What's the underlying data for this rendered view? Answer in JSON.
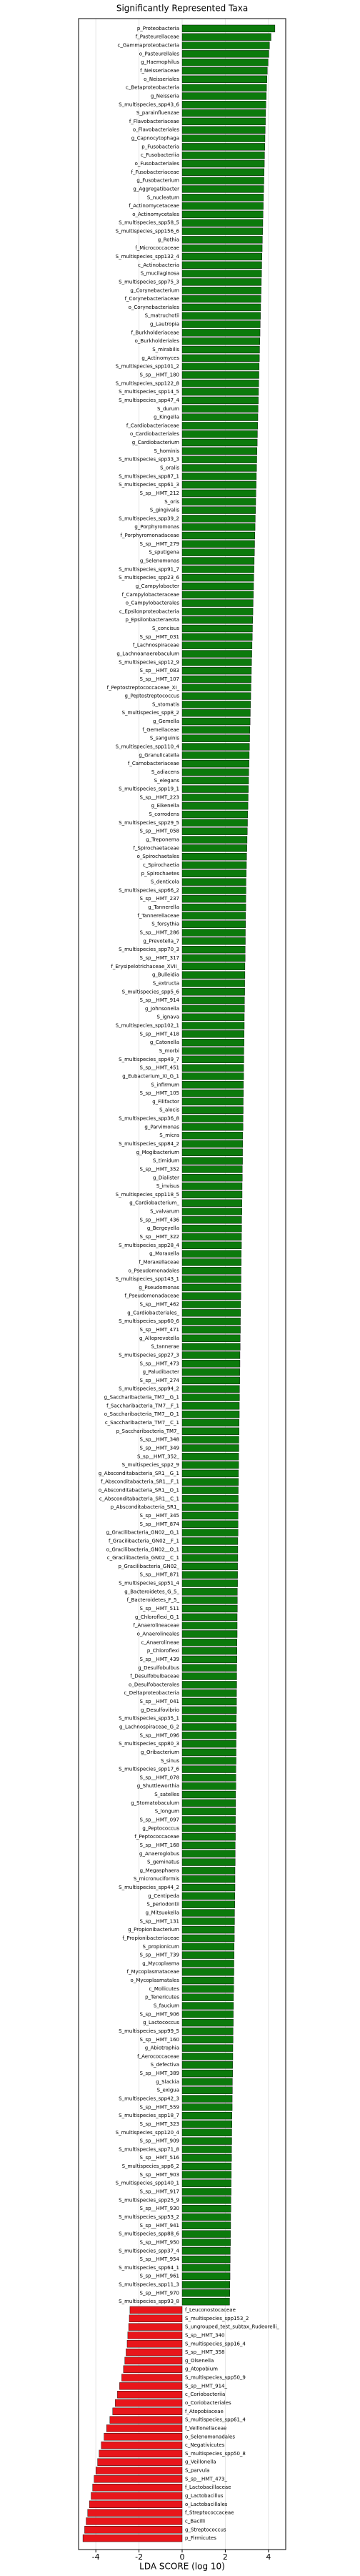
{
  "chart_data": {
    "type": "diverging_bar",
    "title": "Significantly Represented Taxa",
    "x_label": "LDA SCORE (log 10)",
    "categories": [
      "p_Proteobacteria",
      "f_Pasteurellaceae",
      "c_Gammaproteobacteria",
      "o_Pasteurellales",
      "g_Haemophilus",
      "f_Neisseriaceae",
      "o_Neisseriales",
      "c_Betaproteobacteria",
      "g_Neisseria",
      "S_multispecies_spp43_6",
      "S_parainfluenzae",
      "f_Flavobacteriaceae",
      "o_Flavobacteriales",
      "g_Capnocytophaga",
      "p_Fusobacteria",
      "c_Fusobacteriia",
      "o_Fusobacteriales",
      "f_Fusobacteriaceae",
      "g_Fusobacterium",
      "g_Aggregatibacter",
      "S_nucleatum",
      "f_Actinomycetaceae",
      "o_Actinomycetales",
      "S_multispecies_spp58_5",
      "S_multispecies_spp156_6",
      "g_Rothia",
      "f_Micrococcaceae",
      "S_multispecies_spp132_4",
      "c_Actinobacteria",
      "S_mucilaginosa",
      "S_multispecies_spp75_3",
      "g_Corynebacterium",
      "f_Corynebacteriaceae",
      "o_Corynebacteriales",
      "S_matruchotii",
      "g_Lautropia",
      "f_Burkholderiaceae",
      "o_Burkholderiales",
      "S_mirabilis",
      "g_Actinomyces",
      "S_multispecies_spp101_2",
      "S_sp__HMT_180",
      "S_multispecies_spp122_8",
      "S_multispecies_spp14_5",
      "S_multispecies_spp47_4",
      "S_durum",
      "g_Kingella",
      "f_Cardiobacteriaceae",
      "o_Cardiobacteriales",
      "g_Cardiobacterium",
      "S_hominis",
      "S_multispecies_spp33_3",
      "S_oralis",
      "S_multispecies_spp87_1",
      "S_multispecies_spp61_3",
      "S_sp__HMT_212",
      "S_oris",
      "S_gingivalis",
      "S_multispecies_spp39_2",
      "g_Porphyromonas",
      "f_Porphyromonadaceae",
      "S_sp__HMT_279",
      "S_sputigena",
      "g_Selenomonas",
      "S_multispecies_spp91_7",
      "S_multispecies_spp23_6",
      "g_Campylobacter",
      "f_Campylobacteraceae",
      "o_Campylobacterales",
      "c_Epsilonproteobacteria",
      "p_Epsilonbacteraeota",
      "S_concisus",
      "S_sp__HMT_031",
      "f_Lachnospiraceae",
      "g_Lachnoanaerobaculum",
      "S_multispecies_spp12_9",
      "S_sp__HMT_083",
      "S_sp__HMT_107",
      "f_Peptostreptococcaceae_XI_",
      "g_Peptostreptococcus",
      "S_stomatis",
      "S_multispecies_spp8_2",
      "g_Gemella",
      "f_Gemellaceae",
      "S_sanguinis",
      "S_multispecies_spp110_4",
      "g_Granulicatella",
      "f_Carnobacteriaceae",
      "S_adiacens",
      "S_elegans",
      "S_multispecies_spp19_1",
      "S_sp__HMT_223",
      "g_Eikenella",
      "S_corrodens",
      "S_multispecies_spp29_5",
      "S_sp__HMT_058",
      "g_Treponema",
      "f_Spirochaetaceae",
      "o_Spirochaetales",
      "c_Spirochaetia",
      "p_Spirochaetes",
      "S_denticola",
      "S_multispecies_spp66_2",
      "S_sp__HMT_237",
      "g_Tannerella",
      "f_Tannerellaceae",
      "S_forsythia",
      "S_sp__HMT_286",
      "g_Prevotella_7",
      "S_multispecies_spp70_3",
      "S_sp__HMT_317",
      "f_Erysipelotrichaceae_XVII_",
      "g_Bulleidia",
      "S_extructa",
      "S_multispecies_spp5_6",
      "S_sp__HMT_914",
      "g_Johnsonella",
      "S_ignava",
      "S_multispecies_spp102_1",
      "S_sp__HMT_418",
      "g_Catonella",
      "S_morbi",
      "S_multispecies_spp49_7",
      "S_sp__HMT_451",
      "g_Eubacterium_XI_G_1",
      "S_infirmum",
      "S_sp__HMT_105",
      "g_Filifactor",
      "S_alocis",
      "S_multispecies_spp36_8",
      "g_Parvimonas",
      "S_micra",
      "S_multispecies_spp84_2",
      "g_Mogibacterium",
      "S_timidum",
      "S_sp__HMT_352",
      "g_Dialister",
      "S_invisus",
      "S_multispecies_spp118_5",
      "g_Cardiobacterium_",
      "S_valvarum",
      "S_sp__HMT_436",
      "g_Bergeyella",
      "S_sp__HMT_322",
      "S_multispecies_spp28_4",
      "g_Moraxella",
      "f_Moraxellaceae",
      "o_Pseudomonadales",
      "S_multispecies_spp143_1",
      "g_Pseudomonas",
      "f_Pseudomonadaceae",
      "S_sp__HMT_462",
      "g_Cardiobacteriales_",
      "S_multispecies_spp60_6",
      "S_sp__HMT_471",
      "g_Alloprevotella",
      "S_tannerae",
      "S_multispecies_spp27_3",
      "S_sp__HMT_473",
      "g_Paludibacter",
      "S_sp__HMT_274",
      "S_multispecies_spp94_2",
      "g_Saccharibacteria_TM7__G_1",
      "f_Saccharibacteria_TM7__F_1",
      "o_Saccharibacteria_TM7__O_1",
      "c_Saccharibacteria_TM7__C_1",
      "p_Saccharibacteria_TM7_",
      "S_sp__HMT_348",
      "S_sp__HMT_349",
      "S_sp__HMT_352_",
      "S_multispecies_spp2_9",
      "g_Absconditabacteria_SR1__G_1",
      "f_Absconditabacteria_SR1__F_1",
      "o_Absconditabacteria_SR1__O_1",
      "c_Absconditabacteria_SR1__C_1",
      "p_Absconditabacteria_SR1_",
      "S_sp__HMT_345",
      "S_sp__HMT_874",
      "g_Gracilibacteria_GN02__G_1",
      "f_Gracilibacteria_GN02__F_1",
      "o_Gracilibacteria_GN02__O_1",
      "c_Gracilibacteria_GN02__C_1",
      "p_Gracilibacteria_GN02_",
      "S_sp__HMT_871",
      "S_multispecies_spp51_4",
      "g_Bacteroidetes_G_5_",
      "f_Bacteroidetes_F_5_",
      "S_sp__HMT_511",
      "g_Chloroflexi_G_1",
      "f_Anaerolineaceae",
      "o_Anaerolineales",
      "c_Anaerolineae",
      "p_Chloroflexi",
      "S_sp__HMT_439",
      "g_Desulfobulbus",
      "f_Desulfobulbaceae",
      "o_Desulfobacterales",
      "c_Deltaproteobacteria",
      "S_sp__HMT_041",
      "g_Desulfovibrio",
      "S_multispecies_spp35_1",
      "g_Lachnospiraceae_G_2",
      "S_sp__HMT_096",
      "S_multispecies_spp80_3",
      "g_Oribacterium",
      "S_sinus",
      "S_multispecies_spp17_6",
      "S_sp__HMT_078",
      "g_Shuttleworthia",
      "S_satelles",
      "g_Stomatobaculum",
      "S_longum",
      "S_sp__HMT_097",
      "g_Peptococcus",
      "f_Peptococcaceae",
      "S_sp__HMT_168",
      "g_Anaeroglobus",
      "S_geminatus",
      "g_Megasphaera",
      "S_micronuciformis",
      "S_multispecies_spp44_2",
      "g_Centipeda",
      "S_periodontii",
      "g_Mitsuokella",
      "S_sp__HMT_131",
      "g_Propionibacterium",
      "f_Propionibacteriaceae",
      "S_propionicum",
      "S_sp__HMT_739",
      "g_Mycoplasma",
      "f_Mycoplasmataceae",
      "o_Mycoplasmatales",
      "c_Mollicutes",
      "p_Tenericutes",
      "S_faucium",
      "S_sp__HMT_906",
      "g_Lactococcus",
      "S_multispecies_spp99_5",
      "S_sp__HMT_160",
      "g_Abiotrophia",
      "f_Aerococcaceae",
      "S_defectiva",
      "S_sp__HMT_389",
      "g_Slackia",
      "S_exigua",
      "S_multispecies_spp42_3",
      "S_sp__HMT_559",
      "S_multispecies_spp18_7",
      "S_sp__HMT_323",
      "S_multispecies_spp120_4",
      "S_sp__HMT_909",
      "S_multispecies_spp71_8",
      "S_sp__HMT_516",
      "S_multispecies_spp6_2",
      "S_sp__HMT_903",
      "S_multispecies_spp140_1",
      "S_sp__HMT_917",
      "S_multispecies_spp25_9",
      "S_sp__HMT_930",
      "S_multispecies_spp53_2",
      "S_sp__HMT_941",
      "S_multispecies_spp88_6",
      "S_sp__HMT_950",
      "S_multispecies_spp37_4",
      "S_sp__HMT_954",
      "S_multispecies_spp64_1",
      "S_sp__HMT_961",
      "S_multispecies_spp11_3",
      "S_sp__HMT_970",
      "S_multispecies_spp93_8",
      "f_Leuconostocaceae",
      "S_multispecies_spp153_2",
      "S_ungrouped_test_subtax_Rudeorelli_",
      "S_sp__HMT_340",
      "S_multispecies_spp16_4",
      "S_sp__HMT_358",
      "g_Olsenella",
      "g_Atopobium",
      "S_multispecies_spp50_9",
      "S_sp__HMT_914_",
      "c_Coriobacteriia",
      "o_Coriobacteriales",
      "f_Atopobiaceae",
      "S_multispecies_spp61_4",
      "f_Veillonellaceae",
      "o_Selenomonadales",
      "c_Negativicutes",
      "S_multispecies_spp50_8",
      "g_Veillonella",
      "S_parvula",
      "S_sp__HMT_473_",
      "f_Lactobacillaceae",
      "g_Lactobacillus",
      "o_Lactobacillales",
      "f_Streptococcaceae",
      "c_Bacilli",
      "g_Streptococcus",
      "p_Firmicutes"
    ],
    "values": [
      4.3,
      4.12,
      4.05,
      4.02,
      3.98,
      3.95,
      3.93,
      3.91,
      3.9,
      3.88,
      3.87,
      3.86,
      3.85,
      3.84,
      3.83,
      3.82,
      3.81,
      3.8,
      3.79,
      3.78,
      3.77,
      3.76,
      3.75,
      3.74,
      3.73,
      3.72,
      3.71,
      3.7,
      3.69,
      3.68,
      3.67,
      3.66,
      3.65,
      3.64,
      3.63,
      3.62,
      3.61,
      3.6,
      3.59,
      3.58,
      3.57,
      3.56,
      3.55,
      3.54,
      3.53,
      3.52,
      3.51,
      3.5,
      3.49,
      3.48,
      3.47,
      3.46,
      3.45,
      3.44,
      3.43,
      3.42,
      3.41,
      3.4,
      3.39,
      3.38,
      3.37,
      3.36,
      3.35,
      3.34,
      3.33,
      3.32,
      3.31,
      3.3,
      3.29,
      3.28,
      3.27,
      3.26,
      3.25,
      3.24,
      3.23,
      3.22,
      3.21,
      3.2,
      3.19,
      3.18,
      3.17,
      3.16,
      3.15,
      3.14,
      3.13,
      3.12,
      3.11,
      3.1,
      3.09,
      3.08,
      3.07,
      3.06,
      3.05,
      3.04,
      3.03,
      3.02,
      3.01,
      3.0,
      2.99,
      2.98,
      2.97,
      2.96,
      2.96,
      2.95,
      2.95,
      2.94,
      2.94,
      2.93,
      2.93,
      2.92,
      2.92,
      2.91,
      2.91,
      2.9,
      2.9,
      2.89,
      2.89,
      2.88,
      2.88,
      2.87,
      2.87,
      2.86,
      2.86,
      2.85,
      2.85,
      2.84,
      2.84,
      2.83,
      2.83,
      2.82,
      2.82,
      2.81,
      2.81,
      2.8,
      2.8,
      2.79,
      2.79,
      2.78,
      2.78,
      2.77,
      2.77,
      2.76,
      2.76,
      2.75,
      2.75,
      2.74,
      2.74,
      2.73,
      2.73,
      2.72,
      2.72,
      2.71,
      2.71,
      2.7,
      2.7,
      2.69,
      2.69,
      2.68,
      2.68,
      2.67,
      2.67,
      2.66,
      2.66,
      2.65,
      2.65,
      2.64,
      2.64,
      2.63,
      2.63,
      2.62,
      2.62,
      2.61,
      2.61,
      2.6,
      2.6,
      2.6,
      2.59,
      2.59,
      2.59,
      2.58,
      2.58,
      2.58,
      2.57,
      2.57,
      2.57,
      2.56,
      2.56,
      2.56,
      2.55,
      2.55,
      2.55,
      2.54,
      2.54,
      2.54,
      2.53,
      2.53,
      2.53,
      2.52,
      2.52,
      2.52,
      2.51,
      2.51,
      2.51,
      2.5,
      2.5,
      2.5,
      2.49,
      2.49,
      2.49,
      2.48,
      2.48,
      2.48,
      2.47,
      2.47,
      2.47,
      2.46,
      2.46,
      2.46,
      2.45,
      2.45,
      2.45,
      2.44,
      2.44,
      2.43,
      2.43,
      2.42,
      2.42,
      2.41,
      2.41,
      2.4,
      2.4,
      2.39,
      2.39,
      2.38,
      2.38,
      2.37,
      2.37,
      2.36,
      2.36,
      2.35,
      2.35,
      2.34,
      2.34,
      2.33,
      2.33,
      2.32,
      2.32,
      2.31,
      2.31,
      2.3,
      2.3,
      2.29,
      2.29,
      2.28,
      2.28,
      2.27,
      2.27,
      2.26,
      2.26,
      2.25,
      2.25,
      2.24,
      2.24,
      2.23,
      2.23,
      2.22,
      2.22,
      2.21,
      2.21,
      2.2,
      -2.42,
      -2.45,
      -2.48,
      -2.52,
      -2.55,
      -2.6,
      -2.66,
      -2.72,
      -2.8,
      -2.9,
      -3.0,
      -3.1,
      -3.22,
      -3.35,
      -3.5,
      -3.62,
      -3.75,
      -3.85,
      -3.92,
      -4.0,
      -4.08,
      -4.15,
      -4.22,
      -4.3,
      -4.38,
      -4.45,
      -4.52,
      -4.6
    ],
    "colors": {
      "positive": "#0c7a0c",
      "negative": "#e8161b"
    },
    "xlim": [
      -4.8,
      4.8
    ],
    "xticks": [
      -4,
      -2,
      0,
      2,
      4
    ],
    "grid": true
  }
}
